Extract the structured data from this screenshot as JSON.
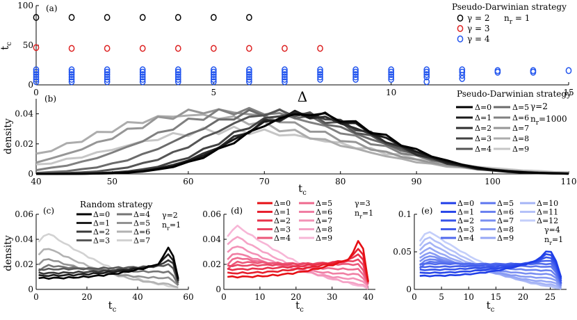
{
  "chart_data": [
    {
      "id": "a",
      "type": "scatter",
      "panel_label": "(a)",
      "title": "Pseudo-Darwinian strategy",
      "param_text": "n_r = 1",
      "xlabel": "Δ",
      "ylabel": "t_c",
      "xlim": [
        0,
        15
      ],
      "ylim": [
        0,
        100
      ],
      "xticks": [
        0,
        5,
        10,
        15
      ],
      "yticks": [
        0,
        50,
        100
      ],
      "series": [
        {
          "name": "γ = 2",
          "color": "#000000",
          "x": [
            0,
            1,
            2,
            3,
            4,
            5,
            6
          ],
          "y": [
            [
              85
            ],
            [
              85
            ],
            [
              85
            ],
            [
              85
            ],
            [
              85
            ],
            [
              85
            ],
            [
              85
            ]
          ]
        },
        {
          "name": "γ = 3",
          "color": "#dd2222",
          "x": [
            0,
            1,
            2,
            3,
            4,
            5,
            6,
            7,
            8
          ],
          "y": [
            [
              47
            ],
            [
              46
            ],
            [
              46
            ],
            [
              46
            ],
            [
              46
            ],
            [
              46
            ],
            [
              46
            ],
            [
              46
            ],
            [
              46
            ]
          ]
        },
        {
          "name": "γ = 4",
          "color": "#2255ee",
          "x": [
            0,
            1,
            2,
            3,
            4,
            5,
            6,
            7,
            8,
            9,
            10,
            11,
            12,
            13,
            14,
            15
          ],
          "y": [
            [
              19,
              16,
              13,
              10,
              7,
              4
            ],
            [
              19,
              16,
              13,
              10,
              7,
              4
            ],
            [
              19,
              16,
              13,
              10,
              7,
              4
            ],
            [
              19,
              16,
              13,
              10,
              7,
              4
            ],
            [
              19,
              16,
              13,
              10,
              7,
              4
            ],
            [
              19,
              16,
              13,
              10,
              7,
              4
            ],
            [
              19,
              16,
              13,
              10,
              7,
              4
            ],
            [
              19,
              16,
              13,
              10,
              7,
              4
            ],
            [
              19,
              16,
              13,
              10,
              7
            ],
            [
              19,
              16,
              13,
              10,
              7
            ],
            [
              19,
              16,
              13,
              10,
              7
            ],
            [
              19,
              16,
              13,
              10,
              4
            ],
            [
              19,
              16,
              12,
              8
            ],
            [
              18,
              16
            ],
            [
              18,
              16
            ],
            [
              18
            ]
          ]
        }
      ]
    },
    {
      "id": "b",
      "type": "line",
      "panel_label": "(b)",
      "title": "Pseudo-Darwinian strategy",
      "param_text": [
        "γ=2",
        "n_r=1000"
      ],
      "xlabel": "t_c",
      "ylabel": "density",
      "xlim": [
        40,
        110
      ],
      "ylim": [
        0,
        0.05
      ],
      "xticks": [
        40,
        50,
        60,
        70,
        80,
        90,
        100,
        110
      ],
      "yticks": [
        0,
        0.02,
        0.04
      ],
      "ytick_labels": [
        "0",
        "0.02",
        "0.04"
      ],
      "series": [
        {
          "name": "Δ=0",
          "color": "#000000",
          "peak": 75.5,
          "height": 0.04,
          "width": 8.5
        },
        {
          "name": "Δ=1",
          "color": "#1a1a1a",
          "peak": 75,
          "height": 0.04,
          "width": 8.5
        },
        {
          "name": "Δ=2",
          "color": "#2e2e2e",
          "peak": 74.5,
          "height": 0.039,
          "width": 8.5
        },
        {
          "name": "Δ=3",
          "color": "#424242",
          "peak": 74,
          "height": 0.04,
          "width": 8.8
        },
        {
          "name": "Δ=4",
          "color": "#555555",
          "peak": 72,
          "height": 0.041,
          "width": 9.5
        },
        {
          "name": "Δ=5",
          "color": "#6b6b6b",
          "peak": 70,
          "height": 0.041,
          "width": 10.5
        },
        {
          "name": "Δ=6",
          "color": "#808080",
          "peak": 67,
          "height": 0.042,
          "width": 11.5
        },
        {
          "name": "Δ=7",
          "color": "#969696",
          "peak": 63,
          "height": 0.042,
          "width": 12.5
        },
        {
          "name": "Δ=8",
          "color": "#acacac",
          "peak": 60,
          "height": 0.039,
          "width": 13.5
        },
        {
          "name": "Δ=9",
          "color": "#c6c6c6",
          "peak": 65,
          "height": 0.029,
          "width": 14
        }
      ]
    },
    {
      "id": "c",
      "type": "line",
      "panel_label": "(c)",
      "title": "Random strategy",
      "param_text": [
        "γ=2",
        "n_r=1"
      ],
      "xlabel": "t_c",
      "ylabel": "density",
      "xlim": [
        0,
        60
      ],
      "ylim": [
        0,
        0.06
      ],
      "xticks": [
        0,
        20,
        40,
        60
      ],
      "yticks": [
        0,
        0.02,
        0.04,
        0.06
      ],
      "ytick_labels": [
        "0",
        "0.02",
        "0.04",
        "0.06"
      ],
      "xmax": 56,
      "series": [
        {
          "name": "Δ=0",
          "color": "#000000",
          "s": 0.009,
          "e": 0.025,
          "curv": 2.5,
          "bump": 0.012,
          "bumpAt": 0.94,
          "drop": 0.02
        },
        {
          "name": "Δ=1",
          "color": "#1d1d1d",
          "s": 0.011,
          "e": 0.023,
          "curv": 2.2,
          "bump": 0.008,
          "bumpAt": 0.94,
          "drop": 0.018
        },
        {
          "name": "Δ=2",
          "color": "#3a3a3a",
          "s": 0.013,
          "e": 0.021,
          "curv": 2,
          "bump": 0.005,
          "bumpAt": 0.95,
          "drop": 0.016
        },
        {
          "name": "Δ=3",
          "color": "#585858",
          "s": 0.016,
          "e": 0.019,
          "curv": 1.5,
          "bump": 0.002,
          "bumpAt": 0.95,
          "drop": 0.014
        },
        {
          "name": "Δ=4",
          "color": "#747474",
          "s": 0.02,
          "e": 0.014,
          "curv": 1,
          "bump": 0,
          "bumpAt": 0.95,
          "drop": 0.01
        },
        {
          "name": "Δ=5",
          "color": "#929292",
          "s": 0.027,
          "e": 0.009,
          "curv": 1,
          "bump": 0,
          "bumpAt": 0.95,
          "drop": 0.006
        },
        {
          "name": "Δ=6",
          "color": "#b2b2b2",
          "s": 0.037,
          "e": 0.004,
          "curv": 1.2,
          "bump": 0,
          "bumpAt": 0.95,
          "drop": 0.003
        },
        {
          "name": "Δ=7",
          "color": "#d2d2d2",
          "s": 0.05,
          "e": 0.002,
          "curv": 1.4,
          "bump": 0,
          "bumpAt": 0.95,
          "drop": 0.001
        }
      ]
    },
    {
      "id": "d",
      "type": "line",
      "panel_label": "(d)",
      "title": "",
      "param_text": [
        "γ=3",
        "n_r=1"
      ],
      "xlabel": "t_c",
      "ylabel": "",
      "xlim": [
        0,
        42
      ],
      "ylim": [
        0,
        0.06
      ],
      "xticks": [
        0,
        10,
        20,
        30,
        40
      ],
      "yticks": [
        0,
        0.02,
        0.04,
        0.06
      ],
      "ytick_labels": [
        "0",
        "0.02",
        "0.04",
        "0.06"
      ],
      "xmax": 40,
      "series": [
        {
          "name": "Δ=0",
          "color": "#e60f14",
          "s": 0.01,
          "e": 0.03,
          "curv": 2.5,
          "bump": 0.015,
          "bumpAt": 0.95,
          "drop": 0.03
        },
        {
          "name": "Δ=1",
          "color": "#e7202f",
          "s": 0.013,
          "e": 0.028,
          "curv": 2.2,
          "bump": 0.009,
          "bumpAt": 0.95,
          "drop": 0.025
        },
        {
          "name": "Δ=2",
          "color": "#e8314a",
          "s": 0.016,
          "e": 0.026,
          "curv": 2,
          "bump": 0.005,
          "bumpAt": 0.95,
          "drop": 0.022
        },
        {
          "name": "Δ=3",
          "color": "#ea4563",
          "s": 0.019,
          "e": 0.023,
          "curv": 1.7,
          "bump": 0.002,
          "bumpAt": 0.95,
          "drop": 0.018
        },
        {
          "name": "Δ=4",
          "color": "#ec5779",
          "s": 0.022,
          "e": 0.02,
          "curv": 1.3,
          "bump": 0,
          "bumpAt": 0.95,
          "drop": 0.015
        },
        {
          "name": "Δ=5",
          "color": "#ee6a8e",
          "s": 0.027,
          "e": 0.016,
          "curv": 1,
          "bump": 0,
          "bumpAt": 0.95,
          "drop": 0.012
        },
        {
          "name": "Δ=6",
          "color": "#f07ea3",
          "s": 0.032,
          "e": 0.012,
          "curv": 1,
          "bump": 0,
          "bumpAt": 0.95,
          "drop": 0.009
        },
        {
          "name": "Δ=7",
          "color": "#f391b6",
          "s": 0.039,
          "e": 0.008,
          "curv": 1.1,
          "bump": 0,
          "bumpAt": 0.95,
          "drop": 0.006
        },
        {
          "name": "Δ=8",
          "color": "#f5a3c6",
          "s": 0.047,
          "e": 0.004,
          "curv": 1.3,
          "bump": 0,
          "bumpAt": 0.95,
          "drop": 0.003
        },
        {
          "name": "Δ=9",
          "color": "#f7b6d6",
          "s": 0.056,
          "e": 0.002,
          "curv": 1.5,
          "bump": 0,
          "bumpAt": 0.95,
          "drop": 0.001
        }
      ]
    },
    {
      "id": "e",
      "type": "line",
      "panel_label": "(e)",
      "title": "",
      "param_text": [
        "γ=4",
        "n_r=1"
      ],
      "xlabel": "t_c",
      "ylabel": "",
      "xlim": [
        0,
        28
      ],
      "ylim": [
        0,
        0.1
      ],
      "xticks": [
        0,
        5,
        10,
        15,
        20,
        25
      ],
      "yticks": [
        0,
        0.05,
        0.1
      ],
      "ytick_labels": [
        "0",
        "0.05",
        "0.1"
      ],
      "xmax": 27,
      "series": [
        {
          "name": "Δ=0",
          "color": "#1f3ee8",
          "s": 0.018,
          "e": 0.05,
          "curv": 2.5,
          "bump": 0.008,
          "bumpAt": 0.9,
          "drop": 0.035
        },
        {
          "name": "Δ=1",
          "color": "#2a48e9",
          "s": 0.022,
          "e": 0.046,
          "curv": 2.3,
          "bump": 0.006,
          "bumpAt": 0.9,
          "drop": 0.033
        },
        {
          "name": "Δ=2",
          "color": "#3653ea",
          "s": 0.026,
          "e": 0.042,
          "curv": 2.1,
          "bump": 0.004,
          "bumpAt": 0.9,
          "drop": 0.031
        },
        {
          "name": "Δ=3",
          "color": "#435eec",
          "s": 0.03,
          "e": 0.038,
          "curv": 1.9,
          "bump": 0.002,
          "bumpAt": 0.9,
          "drop": 0.029
        },
        {
          "name": "Δ=4",
          "color": "#506aed",
          "s": 0.034,
          "e": 0.034,
          "curv": 1.6,
          "bump": 0,
          "bumpAt": 0.9,
          "drop": 0.026
        },
        {
          "name": "Δ=5",
          "color": "#5d76ef",
          "s": 0.038,
          "e": 0.03,
          "curv": 1.3,
          "bump": 0,
          "bumpAt": 0.9,
          "drop": 0.023
        },
        {
          "name": "Δ=6",
          "color": "#6b82f0",
          "s": 0.043,
          "e": 0.025,
          "curv": 1.1,
          "bump": 0,
          "bumpAt": 0.9,
          "drop": 0.02
        },
        {
          "name": "Δ=7",
          "color": "#798ef2",
          "s": 0.049,
          "e": 0.02,
          "curv": 1,
          "bump": 0,
          "bumpAt": 0.9,
          "drop": 0.016
        },
        {
          "name": "Δ=8",
          "color": "#879af3",
          "s": 0.055,
          "e": 0.015,
          "curv": 1,
          "bump": 0,
          "bumpAt": 0.9,
          "drop": 0.012
        },
        {
          "name": "Δ=9",
          "color": "#96a7f5",
          "s": 0.062,
          "e": 0.01,
          "curv": 1.1,
          "bump": 0,
          "bumpAt": 0.9,
          "drop": 0.008
        },
        {
          "name": "Δ=10",
          "color": "#a5b4f6",
          "s": 0.07,
          "e": 0.006,
          "curv": 1.2,
          "bump": 0,
          "bumpAt": 0.9,
          "drop": 0.005
        },
        {
          "name": "Δ=11",
          "color": "#b4c1f8",
          "s": 0.078,
          "e": 0.003,
          "curv": 1.3,
          "bump": 0,
          "bumpAt": 0.9,
          "drop": 0.002
        },
        {
          "name": "Δ=12",
          "color": "#c3cefa",
          "s": 0.086,
          "e": 0.002,
          "curv": 1.4,
          "bump": 0,
          "bumpAt": 0.9,
          "drop": 0.001
        }
      ]
    }
  ]
}
